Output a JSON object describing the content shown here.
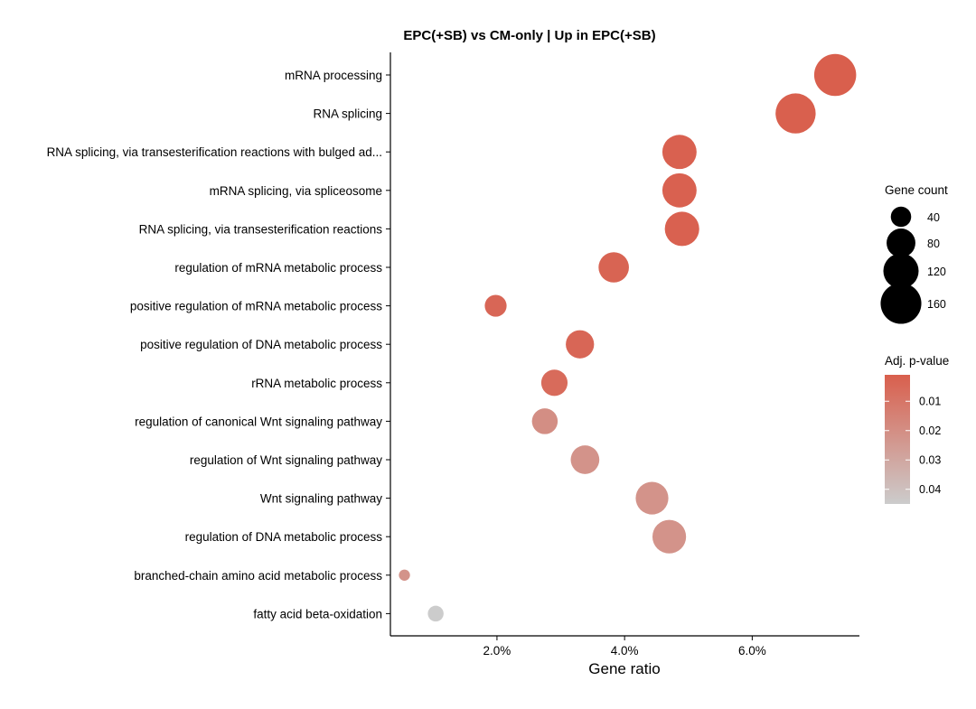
{
  "chart_data": {
    "type": "scatter",
    "title": "EPC(+SB) vs CM-only | Up in EPC(+SB)",
    "xlabel": "Gene ratio",
    "ylabel": "",
    "x_tick_values": [
      0.02,
      0.04,
      0.06
    ],
    "x_tick_labels": [
      "2.0%",
      "4.0%",
      "6.0%"
    ],
    "xlim": [
      0.0033,
      0.0768
    ],
    "grid": false,
    "legend_position": "right",
    "points": [
      {
        "term": "mRNA processing",
        "gene_ratio": 0.073,
        "count": 170,
        "p_adj": 0.001
      },
      {
        "term": "RNA splicing",
        "gene_ratio": 0.0668,
        "count": 155,
        "p_adj": 0.0015
      },
      {
        "term": "RNA splicing, via transesterification reactions with bulged ad...",
        "gene_ratio": 0.0486,
        "count": 113,
        "p_adj": 0.002
      },
      {
        "term": "mRNA splicing, via spliceosome",
        "gene_ratio": 0.0486,
        "count": 113,
        "p_adj": 0.002
      },
      {
        "term": "RNA splicing, via transesterification reactions",
        "gene_ratio": 0.049,
        "count": 114,
        "p_adj": 0.002
      },
      {
        "term": "regulation of mRNA metabolic process",
        "gene_ratio": 0.0383,
        "count": 89,
        "p_adj": 0.003
      },
      {
        "term": "positive regulation of mRNA metabolic process",
        "gene_ratio": 0.0198,
        "count": 46,
        "p_adj": 0.004
      },
      {
        "term": "positive regulation of DNA metabolic process",
        "gene_ratio": 0.033,
        "count": 77,
        "p_adj": 0.004
      },
      {
        "term": "rRNA metabolic process",
        "gene_ratio": 0.029,
        "count": 67,
        "p_adj": 0.006
      },
      {
        "term": "regulation of canonical Wnt signaling pathway",
        "gene_ratio": 0.0275,
        "count": 64,
        "p_adj": 0.02
      },
      {
        "term": "regulation of Wnt signaling pathway",
        "gene_ratio": 0.0338,
        "count": 79,
        "p_adj": 0.022
      },
      {
        "term": "Wnt signaling pathway",
        "gene_ratio": 0.0443,
        "count": 103,
        "p_adj": 0.022
      },
      {
        "term": "regulation of DNA metabolic process",
        "gene_ratio": 0.047,
        "count": 109,
        "p_adj": 0.022
      },
      {
        "term": "branched-chain amino acid metabolic process",
        "gene_ratio": 0.0055,
        "count": 12,
        "p_adj": 0.022
      },
      {
        "term": "fatty acid beta-oxidation",
        "gene_ratio": 0.0104,
        "count": 24,
        "p_adj": 0.045
      }
    ],
    "size_legend": {
      "title": "Gene count",
      "values": [
        40,
        80,
        120,
        160
      ],
      "labels": [
        "40",
        "80",
        "120",
        "160"
      ]
    },
    "color_legend": {
      "title": "Adj. p-value",
      "range": [
        0.001,
        0.045
      ],
      "tick_values": [
        0.01,
        0.02,
        0.03,
        0.04
      ],
      "tick_labels": [
        "0.01",
        "0.02",
        "0.03",
        "0.04"
      ],
      "low_color": "#d95f4d",
      "high_color": "#cccccc"
    }
  }
}
